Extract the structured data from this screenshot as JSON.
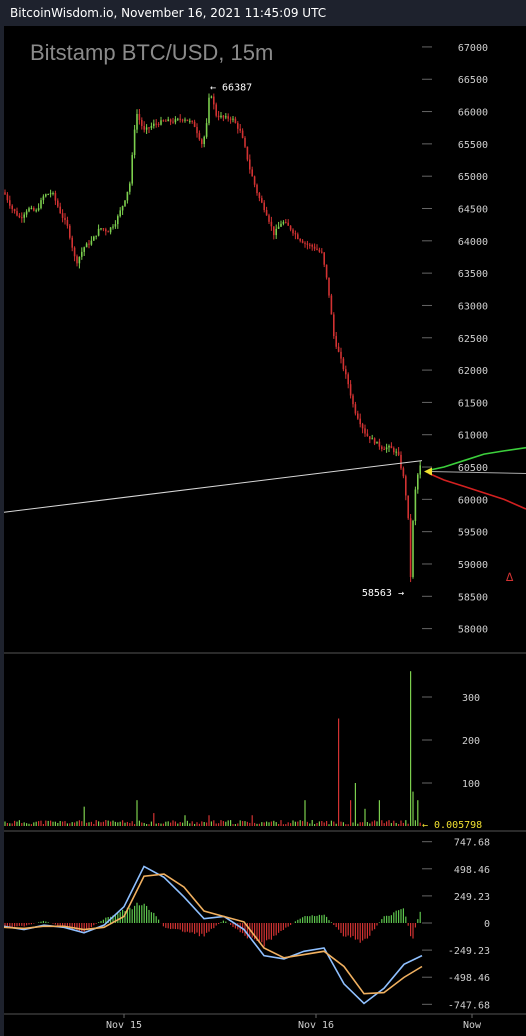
{
  "header": {
    "text": "BitcoinWisdom.io, November 16, 2021 11:45:09 UTC"
  },
  "chart_data": {
    "type": "candlestick",
    "title": "Bitstamp BTC/USD, 15m",
    "price_axis": {
      "ticks": [
        "67000",
        "66500",
        "66000",
        "65500",
        "65000",
        "64500",
        "64000",
        "63500",
        "63000",
        "62500",
        "62000",
        "61500",
        "61000",
        "60500",
        "60000",
        "59500",
        "59000",
        "58500",
        "58000"
      ],
      "ylim": [
        57700,
        67200
      ]
    },
    "volume_axis": {
      "ticks": [
        "300",
        "200",
        "100"
      ],
      "ylim": [
        0,
        400
      ]
    },
    "macd_axis": {
      "ticks": [
        "747.68",
        "498.46",
        "249.23",
        "0",
        "-249.23",
        "-498.46",
        "-747.68"
      ],
      "ylim": [
        -800,
        800
      ]
    },
    "time_labels": [
      "Nov 15",
      "Nov 16",
      "Now"
    ],
    "annotations": {
      "high": "66387",
      "low": "58563",
      "last_volume": "0.005798"
    },
    "price_path": [
      [
        0,
        64750
      ],
      [
        8,
        64500
      ],
      [
        16,
        64350
      ],
      [
        24,
        64500
      ],
      [
        32,
        64450
      ],
      [
        40,
        64700
      ],
      [
        48,
        64750
      ],
      [
        56,
        64450
      ],
      [
        64,
        64200
      ],
      [
        72,
        63650
      ],
      [
        80,
        63900
      ],
      [
        88,
        64000
      ],
      [
        96,
        64200
      ],
      [
        104,
        64150
      ],
      [
        112,
        64300
      ],
      [
        120,
        64600
      ],
      [
        126,
        64900
      ],
      [
        132,
        66000
      ],
      [
        140,
        65700
      ],
      [
        150,
        65800
      ],
      [
        160,
        65850
      ],
      [
        170,
        65850
      ],
      [
        180,
        65900
      ],
      [
        190,
        65800
      ],
      [
        198,
        65500
      ],
      [
        202,
        65700
      ],
      [
        206,
        66350
      ],
      [
        212,
        65950
      ],
      [
        220,
        65900
      ],
      [
        228,
        65900
      ],
      [
        236,
        65700
      ],
      [
        240,
        65500
      ],
      [
        246,
        65100
      ],
      [
        254,
        64700
      ],
      [
        262,
        64450
      ],
      [
        270,
        64100
      ],
      [
        278,
        64300
      ],
      [
        286,
        64200
      ],
      [
        294,
        64050
      ],
      [
        302,
        63950
      ],
      [
        310,
        63900
      ],
      [
        318,
        63800
      ],
      [
        324,
        63300
      ],
      [
        330,
        62500
      ],
      [
        336,
        62200
      ],
      [
        344,
        61800
      ],
      [
        350,
        61400
      ],
      [
        356,
        61200
      ],
      [
        362,
        61000
      ],
      [
        370,
        60900
      ],
      [
        378,
        60800
      ],
      [
        386,
        60800
      ],
      [
        394,
        60700
      ],
      [
        400,
        60300
      ],
      [
        404,
        59800
      ],
      [
        406,
        58600
      ],
      [
        408,
        59300
      ],
      [
        410,
        60000
      ],
      [
        414,
        60400
      ],
      [
        418,
        60600
      ]
    ],
    "trendline": [
      [
        0,
        59800
      ],
      [
        418,
        60600
      ]
    ],
    "depth_bids": [
      [
        425,
        60450
      ],
      [
        440,
        60500
      ],
      [
        460,
        60600
      ],
      [
        480,
        60700
      ],
      [
        500,
        60750
      ],
      [
        522,
        60800
      ]
    ],
    "depth_asks": [
      [
        425,
        60400
      ],
      [
        440,
        60300
      ],
      [
        460,
        60200
      ],
      [
        480,
        60100
      ],
      [
        500,
        60000
      ],
      [
        522,
        59850
      ]
    ],
    "volume_peaks": [
      [
        48,
        10
      ],
      [
        80,
        45
      ],
      [
        132,
        60
      ],
      [
        150,
        30
      ],
      [
        180,
        25
      ],
      [
        204,
        25
      ],
      [
        248,
        25
      ],
      [
        302,
        60
      ],
      [
        334,
        250
      ],
      [
        346,
        60
      ],
      [
        352,
        100
      ],
      [
        362,
        40
      ],
      [
        376,
        60
      ],
      [
        406,
        360
      ],
      [
        410,
        80
      ],
      [
        414,
        60
      ]
    ],
    "macd_path": [
      [
        0,
        -30
      ],
      [
        20,
        -60
      ],
      [
        40,
        -20
      ],
      [
        60,
        -40
      ],
      [
        80,
        -90
      ],
      [
        100,
        -20
      ],
      [
        120,
        150
      ],
      [
        140,
        520
      ],
      [
        160,
        420
      ],
      [
        180,
        240
      ],
      [
        200,
        40
      ],
      [
        220,
        60
      ],
      [
        240,
        -60
      ],
      [
        260,
        -300
      ],
      [
        280,
        -330
      ],
      [
        300,
        -260
      ],
      [
        320,
        -230
      ],
      [
        340,
        -560
      ],
      [
        360,
        -740
      ],
      [
        380,
        -600
      ],
      [
        400,
        -380
      ],
      [
        418,
        -300
      ]
    ],
    "signal_path": [
      [
        0,
        -40
      ],
      [
        20,
        -50
      ],
      [
        40,
        -30
      ],
      [
        60,
        -30
      ],
      [
        80,
        -60
      ],
      [
        100,
        -40
      ],
      [
        120,
        60
      ],
      [
        140,
        430
      ],
      [
        160,
        450
      ],
      [
        180,
        330
      ],
      [
        200,
        110
      ],
      [
        220,
        60
      ],
      [
        240,
        10
      ],
      [
        260,
        -230
      ],
      [
        280,
        -320
      ],
      [
        300,
        -290
      ],
      [
        320,
        -260
      ],
      [
        340,
        -400
      ],
      [
        360,
        -650
      ],
      [
        380,
        -640
      ],
      [
        400,
        -500
      ],
      [
        418,
        -400
      ]
    ],
    "hist_path": [
      [
        0,
        -40
      ],
      [
        20,
        -30
      ],
      [
        40,
        20
      ],
      [
        60,
        -40
      ],
      [
        80,
        -80
      ],
      [
        100,
        40
      ],
      [
        120,
        120
      ],
      [
        140,
        200
      ],
      [
        150,
        90
      ],
      [
        160,
        -40
      ],
      [
        180,
        -80
      ],
      [
        200,
        -120
      ],
      [
        220,
        30
      ],
      [
        240,
        -120
      ],
      [
        260,
        -200
      ],
      [
        280,
        -60
      ],
      [
        300,
        70
      ],
      [
        320,
        80
      ],
      [
        340,
        -120
      ],
      [
        360,
        -180
      ],
      [
        380,
        60
      ],
      [
        400,
        140
      ],
      [
        408,
        -170
      ],
      [
        418,
        180
      ]
    ]
  }
}
